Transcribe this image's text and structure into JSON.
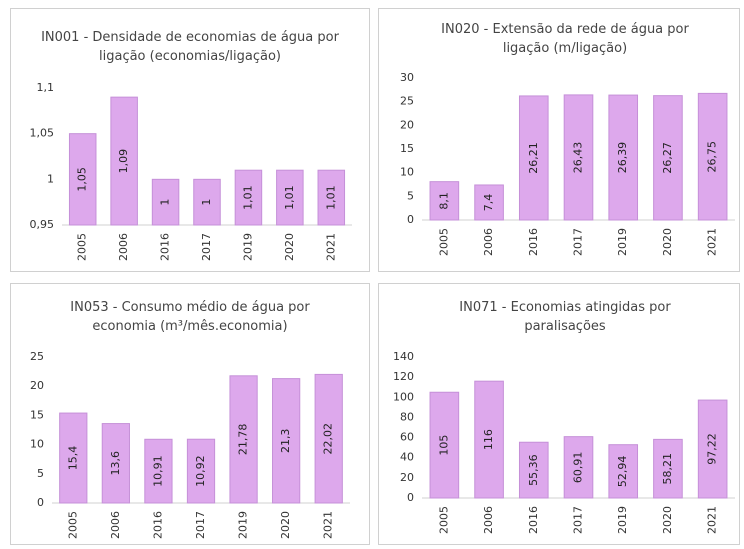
{
  "chart_data": [
    {
      "type": "bar",
      "title": "IN001 - Densidade de economias de água por ligação (economias/ligação)",
      "categories": [
        "2005",
        "2006",
        "2016",
        "2017",
        "2019",
        "2020",
        "2021"
      ],
      "values": [
        1.05,
        1.09,
        1,
        1,
        1.01,
        1.01,
        1.01
      ],
      "value_labels": [
        "1,05",
        "1,09",
        "1",
        "1",
        "1,01",
        "1,01",
        "1,01"
      ],
      "color": "#dda8ec",
      "ylim": [
        0.95,
        1.1
      ],
      "yticks": [
        {
          "value": 0.95,
          "label": "0,95"
        },
        1,
        {
          "value": 1.05,
          "label": "1,05"
        },
        {
          "value": 1.1,
          "label": "1,1"
        }
      ]
    },
    {
      "type": "bar",
      "title": "IN020 - Extensão da rede de água por ligação (m/ligação)",
      "categories": [
        "2005",
        "2006",
        "2016",
        "2017",
        "2019",
        "2020",
        "2021"
      ],
      "values": [
        8.1,
        7.4,
        26.21,
        26.43,
        26.39,
        26.27,
        26.75
      ],
      "value_labels": [
        "8,1",
        "7,4",
        "26,21",
        "26,43",
        "26,39",
        "26,27",
        "26,75"
      ],
      "color": "#dda8ec",
      "ylim": [
        0,
        30
      ],
      "yticks": [
        0,
        5,
        10,
        15,
        20,
        25,
        30
      ]
    },
    {
      "type": "bar",
      "title": "IN053 - Consumo médio de água por economia (m³/mês.economia)",
      "categories": [
        "2005",
        "2006",
        "2016",
        "2017",
        "2019",
        "2020",
        "2021"
      ],
      "values": [
        15.4,
        13.6,
        10.91,
        10.92,
        21.78,
        21.3,
        22.02
      ],
      "value_labels": [
        "15,4",
        "13,6",
        "10,91",
        "10,92",
        "21,78",
        "21,3",
        "22,02"
      ],
      "color": "#dda8ec",
      "ylim": [
        0,
        25
      ],
      "yticks": [
        0,
        5,
        10,
        15,
        20,
        25
      ]
    },
    {
      "type": "bar",
      "title": "IN071 - Economias atingidas por paralisações",
      "categories": [
        "2005",
        "2006",
        "2016",
        "2017",
        "2019",
        "2020",
        "2021"
      ],
      "values": [
        105,
        116,
        55.36,
        60.91,
        52.94,
        58.21,
        97.22
      ],
      "value_labels": [
        "105",
        "116",
        "55,36",
        "60,91",
        "52,94",
        "58,21",
        "97,22"
      ],
      "color": "#dda8ec",
      "ylim": [
        0,
        140
      ],
      "yticks": [
        0,
        20,
        40,
        60,
        80,
        100,
        120,
        140
      ]
    }
  ]
}
